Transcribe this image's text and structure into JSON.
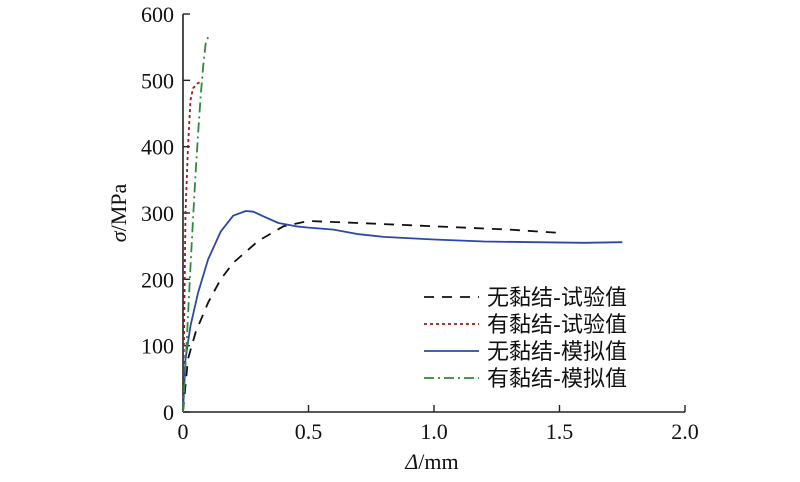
{
  "chart_data": {
    "type": "line",
    "title": "",
    "xlabel": {
      "symbol": "Δ",
      "unit": "/mm"
    },
    "ylabel": {
      "symbol": "σ",
      "unit": "/MPa"
    },
    "xlim": [
      0,
      2.0
    ],
    "ylim": [
      0,
      600
    ],
    "xticks": [
      {
        "value": 0,
        "label": "0"
      },
      {
        "value": 0.5,
        "label": "0.5"
      },
      {
        "value": 1.0,
        "label": "1.0"
      },
      {
        "value": 1.5,
        "label": "1.5"
      },
      {
        "value": 2.0,
        "label": "2.0"
      }
    ],
    "yticks": [
      {
        "value": 0,
        "label": "0"
      },
      {
        "value": 100,
        "label": "100"
      },
      {
        "value": 200,
        "label": "200"
      },
      {
        "value": 300,
        "label": "300"
      },
      {
        "value": 400,
        "label": "400"
      },
      {
        "value": 500,
        "label": "500"
      },
      {
        "value": 600,
        "label": "600"
      }
    ],
    "grid": false,
    "legend_position": "bottom-right",
    "series": [
      {
        "name": "无黏结-试验值",
        "color": "#111111",
        "dash": "10,8",
        "x": [
          0,
          0.02,
          0.05,
          0.1,
          0.15,
          0.2,
          0.3,
          0.4,
          0.5,
          0.7,
          1.0,
          1.3,
          1.5
        ],
        "y": [
          0,
          80,
          120,
          165,
          200,
          225,
          258,
          280,
          288,
          285,
          280,
          275,
          270
        ]
      },
      {
        "name": "有黏结-试验值",
        "color": "#a01818",
        "dash": "3,3",
        "x": [
          0,
          0.005,
          0.01,
          0.02,
          0.03,
          0.04,
          0.05,
          0.06,
          0.07
        ],
        "y": [
          0,
          150,
          300,
          400,
          470,
          488,
          492,
          496,
          497
        ]
      },
      {
        "name": "无黏结-模拟值",
        "color": "#2a4aa6",
        "dash": "",
        "x": [
          0,
          0.01,
          0.03,
          0.06,
          0.1,
          0.15,
          0.2,
          0.25,
          0.28,
          0.32,
          0.38,
          0.45,
          0.5,
          0.6,
          0.7,
          0.8,
          1.0,
          1.2,
          1.4,
          1.6,
          1.75
        ],
        "y": [
          0,
          80,
          130,
          180,
          230,
          272,
          296,
          303,
          302,
          295,
          285,
          280,
          278,
          275,
          268,
          264,
          260,
          257,
          256,
          255,
          256
        ]
      },
      {
        "name": "有黏结-模拟值",
        "color": "#2f8a3a",
        "dash": "10,4,2,4",
        "x": [
          0,
          0.01,
          0.02,
          0.03,
          0.04,
          0.05,
          0.06,
          0.07,
          0.08,
          0.09,
          0.1
        ],
        "y": [
          0,
          70,
          145,
          220,
          290,
          360,
          420,
          475,
          520,
          555,
          565
        ]
      }
    ]
  }
}
